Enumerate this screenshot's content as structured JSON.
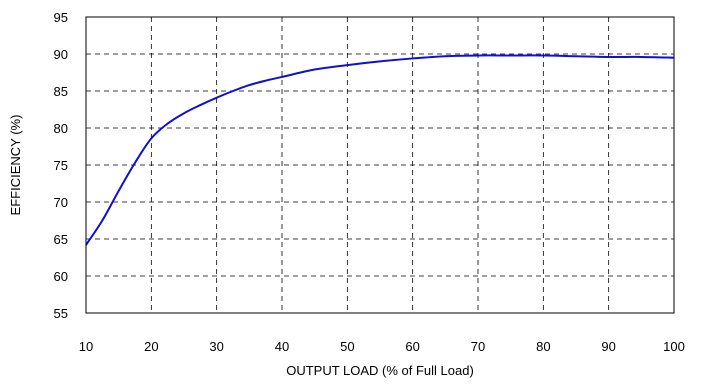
{
  "chart_data": {
    "type": "line",
    "xlabel": "OUTPUT LOAD (% of Full Load)",
    "ylabel": "EFFICIENCY (%)",
    "xlim": [
      10,
      100
    ],
    "ylim": [
      55,
      95
    ],
    "xticks": [
      10,
      20,
      30,
      40,
      50,
      60,
      70,
      80,
      90,
      100
    ],
    "yticks": [
      55,
      60,
      65,
      70,
      75,
      80,
      85,
      90,
      95
    ],
    "grid": true,
    "series": [
      {
        "color": "#1010d0",
        "x": [
          10,
          12.5,
          15,
          17.5,
          20,
          22.5,
          25,
          27.5,
          30,
          32.5,
          35,
          37.5,
          40,
          45,
          50,
          55,
          60,
          65,
          70,
          75,
          80,
          85,
          90,
          95,
          100
        ],
        "y": [
          64.2,
          67.5,
          71.5,
          75.3,
          78.6,
          80.6,
          82.0,
          83.1,
          84.1,
          85.0,
          85.8,
          86.4,
          86.9,
          87.9,
          88.5,
          89.0,
          89.4,
          89.7,
          89.8,
          89.8,
          89.8,
          89.7,
          89.6,
          89.6,
          89.5
        ]
      }
    ]
  }
}
